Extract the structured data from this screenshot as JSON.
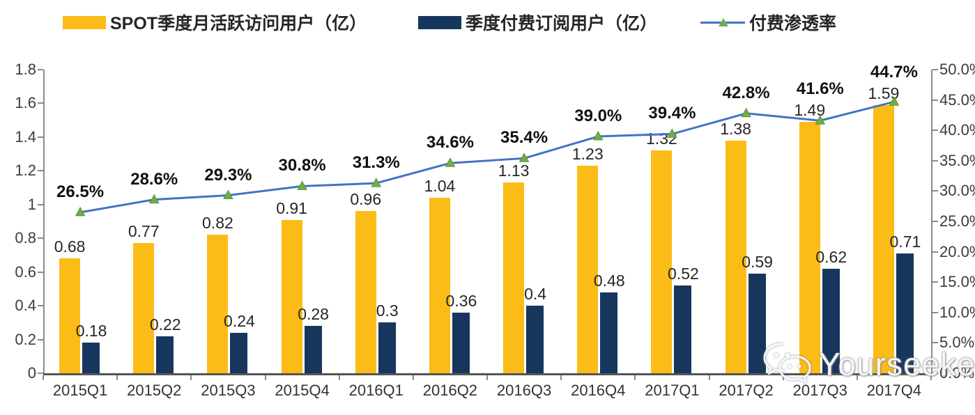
{
  "chart_data": {
    "type": "bar",
    "subtype": "combo-bar-line-dual-axis",
    "categories": [
      "2015Q1",
      "2015Q2",
      "2015Q3",
      "2015Q4",
      "2016Q1",
      "2016Q2",
      "2016Q3",
      "2016Q4",
      "2017Q1",
      "2017Q2",
      "2017Q3",
      "2017Q4"
    ],
    "series": [
      {
        "name": "SPOT季度月活跃访问用户（亿）",
        "type": "bar",
        "axis": "left",
        "color": "#FBBC18",
        "values": [
          0.68,
          0.77,
          0.82,
          0.91,
          0.96,
          1.04,
          1.13,
          1.23,
          1.32,
          1.38,
          1.49,
          1.59
        ],
        "labels": [
          "0.68",
          "0.77",
          "0.82",
          "0.91",
          "0.96",
          "1.04",
          "1.13",
          "1.23",
          "1.32",
          "1.38",
          "1.49",
          "1.59"
        ]
      },
      {
        "name": "季度付费订阅用户（亿）",
        "type": "bar",
        "axis": "left",
        "color": "#17365D",
        "values": [
          0.18,
          0.22,
          0.24,
          0.28,
          0.3,
          0.36,
          0.4,
          0.48,
          0.52,
          0.59,
          0.62,
          0.71
        ],
        "labels": [
          "0.18",
          "0.22",
          "0.24",
          "0.28",
          "0.3",
          "0.36",
          "0.4",
          "0.48",
          "0.52",
          "0.59",
          "0.62",
          "0.71"
        ]
      },
      {
        "name": "付费渗透率",
        "type": "line",
        "axis": "right",
        "color": "#4472C4",
        "marker": "triangle",
        "marker_color": "#70AD47",
        "values": [
          26.5,
          28.6,
          29.3,
          30.8,
          31.3,
          34.6,
          35.4,
          39.0,
          39.4,
          42.8,
          41.6,
          44.7
        ],
        "labels": [
          "26.5%",
          "28.6%",
          "29.3%",
          "30.8%",
          "31.3%",
          "34.6%",
          "35.4%",
          "39.0%",
          "39.4%",
          "42.8%",
          "41.6%",
          "44.7%"
        ]
      }
    ],
    "left_axis": {
      "min": 0,
      "max": 1.8,
      "tick_labels": [
        "0",
        "0.2",
        "0.4",
        "0.6",
        "0.8",
        "1",
        "1.2",
        "1.4",
        "1.6",
        "1.8"
      ]
    },
    "right_axis": {
      "min": 0,
      "max": 50,
      "tick_labels": [
        "0.0%",
        "5.0%",
        "10.0%",
        "15.0%",
        "20.0%",
        "25.0%",
        "30.0%",
        "35.0%",
        "40.0%",
        "45.0%",
        "50.0%"
      ]
    },
    "grid": false,
    "legend_position": "top"
  },
  "legend": {
    "items": [
      {
        "label": "SPOT季度月活跃访问用户（亿）",
        "swatch": "bar-yellow"
      },
      {
        "label": "季度付费订阅用户（亿）",
        "swatch": "bar-navy"
      },
      {
        "label": "付费渗透率",
        "swatch": "line-triangle"
      }
    ]
  },
  "watermark": {
    "text": "Yourseeker",
    "icon": "wechat-icon"
  },
  "colors": {
    "bar_mau": "#FBBC18",
    "bar_subs": "#17365D",
    "line": "#4472C4",
    "marker": "#70AD47",
    "axis": "#8a8a8a",
    "tick_text": "#3b3b3b",
    "label_text": "#262626"
  }
}
